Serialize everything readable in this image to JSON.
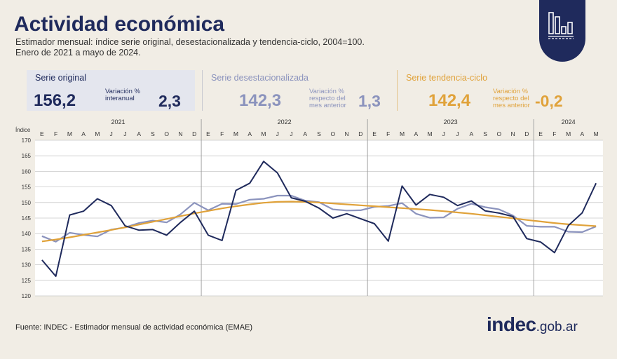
{
  "header": {
    "title": "Actividad económica",
    "subtitle_line1": "Estimador mensual: índice serie original, desestacionalizada y tendencia-ciclo, 2004=100.",
    "subtitle_line2": "Enero de 2021 a mayo de 2024."
  },
  "kpis": {
    "original": {
      "label": "Serie original",
      "value": "156,2",
      "var_label_1": "Variación %",
      "var_label_2": "interanual",
      "var_value": "2,3",
      "color": "#1f2a5c"
    },
    "desest": {
      "label": "Serie desestacionalizada",
      "value": "142,3",
      "var_label_1": "Variación %",
      "var_label_2": "respecto del",
      "var_label_3": "mes anterior",
      "var_value": "1,3",
      "color": "#8b93bd"
    },
    "tendencia": {
      "label": "Serie tendencia-ciclo",
      "value": "142,4",
      "var_label_1": "Variación %",
      "var_label_2": "respecto del",
      "var_label_3": "mes anterior",
      "var_value": "-0,2",
      "color": "#e0a23a"
    }
  },
  "chart_data": {
    "type": "line",
    "ylabel": "Índice",
    "ylim": [
      120,
      170
    ],
    "yticks": [
      120,
      125,
      130,
      135,
      140,
      145,
      150,
      155,
      160,
      165,
      170
    ],
    "years": [
      {
        "label": "2021",
        "start": 0,
        "count": 12
      },
      {
        "label": "2022",
        "start": 12,
        "count": 12
      },
      {
        "label": "2023",
        "start": 24,
        "count": 12
      },
      {
        "label": "2024",
        "start": 36,
        "count": 5
      }
    ],
    "x": [
      "E",
      "F",
      "M",
      "A",
      "M",
      "J",
      "J",
      "A",
      "S",
      "O",
      "N",
      "D",
      "E",
      "F",
      "M",
      "A",
      "M",
      "J",
      "J",
      "A",
      "S",
      "O",
      "N",
      "D",
      "E",
      "F",
      "M",
      "A",
      "M",
      "J",
      "J",
      "A",
      "S",
      "O",
      "N",
      "D",
      "E",
      "F",
      "M",
      "A",
      "M"
    ],
    "grid": true,
    "series": [
      {
        "name": "Serie original",
        "color": "#1f2a5c",
        "values": [
          131.5,
          126.3,
          146.0,
          147.2,
          151.2,
          149.0,
          142.5,
          141.1,
          141.3,
          139.5,
          143.6,
          147.2,
          139.5,
          137.8,
          153.9,
          156.2,
          163.2,
          159.5,
          151.5,
          150.4,
          148.2,
          145.0,
          146.4,
          144.8,
          143.2,
          137.6,
          155.3,
          149.2,
          152.6,
          151.7,
          149.0,
          150.5,
          147.3,
          146.6,
          145.5,
          138.4,
          137.3,
          133.9,
          142.6,
          146.7,
          156.2
        ]
      },
      {
        "name": "Serie desestacionalizada",
        "color": "#8b93bd",
        "values": [
          139.2,
          137.4,
          140.3,
          139.6,
          139.1,
          141.3,
          142.0,
          143.4,
          144.2,
          143.6,
          146.2,
          149.9,
          147.5,
          149.6,
          149.5,
          150.9,
          151.2,
          152.2,
          152.2,
          150.6,
          150.1,
          147.8,
          147.4,
          147.5,
          148.6,
          148.9,
          149.8,
          146.4,
          145.1,
          145.2,
          148.0,
          149.6,
          148.5,
          147.8,
          145.8,
          142.5,
          142.2,
          142.2,
          140.6,
          140.5,
          142.3
        ]
      },
      {
        "name": "Serie tendencia-ciclo",
        "color": "#e0a23a",
        "values": [
          137.5,
          138.1,
          138.8,
          139.6,
          140.4,
          141.2,
          142.0,
          142.9,
          143.8,
          144.7,
          145.6,
          146.5,
          147.3,
          148.1,
          148.8,
          149.4,
          149.9,
          150.2,
          150.3,
          150.2,
          150.0,
          149.7,
          149.4,
          149.1,
          148.8,
          148.5,
          148.2,
          147.9,
          147.6,
          147.2,
          146.8,
          146.4,
          145.9,
          145.4,
          144.9,
          144.4,
          143.9,
          143.4,
          143.0,
          142.7,
          142.4
        ]
      }
    ]
  },
  "footer": {
    "source": "Fuente: INDEC - Estimador mensual de actividad económica (EMAE)",
    "brand_main": "indec",
    "brand_domain": ".gob.ar"
  }
}
